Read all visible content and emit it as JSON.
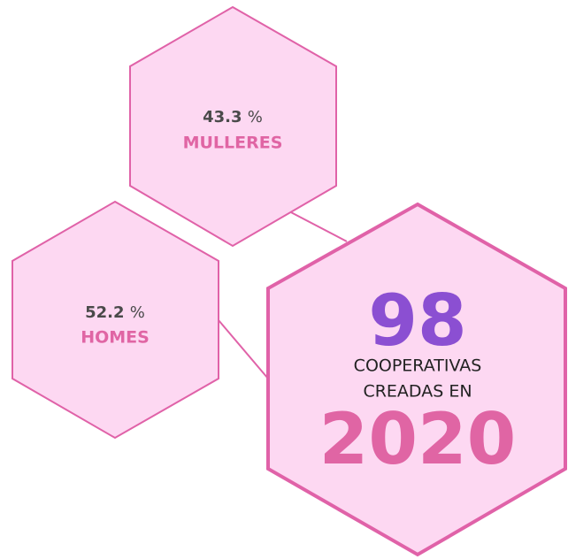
{
  "nodes": [
    {
      "value": "43.3",
      "unit": "%",
      "label": "MULLERES"
    },
    {
      "value": "52.2",
      "unit": "%",
      "label": "HOMES"
    },
    {
      "number": "98",
      "line1": "COOPERATIVAS",
      "line2": "CREADAS EN",
      "year": "2020"
    }
  ]
}
